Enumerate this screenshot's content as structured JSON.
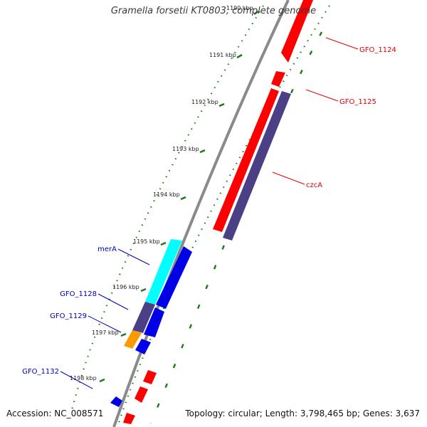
{
  "header": {
    "title": "Gramella forsetii KT0803, complete genome"
  },
  "footer": {
    "accession": "Accession: NC_008571",
    "summary": "Topology: circular; Length: 3,798,465 bp; Genes: 3,637"
  },
  "colors": {
    "backbone": "#8a8a8a",
    "forward_gene": "#ff0000",
    "reverse_gene": "#0000e6",
    "ribbon_purple": "#4b3f86",
    "ribbon_cyan": "#00ffff",
    "ribbon_orange": "#ff9900",
    "tick_dots": "#1a7a1a",
    "label_red": "#e00000",
    "label_blue": "#0000b0"
  },
  "ticks": [
    "1190 kbp",
    "1191 kbp",
    "1192 kbp",
    "1193 kbp",
    "1194 kbp",
    "1195 kbp",
    "1196 kbp",
    "1197 kbp",
    "1198 kbp"
  ],
  "gene_labels": [
    {
      "text": "GFO_1124",
      "strand": "forward"
    },
    {
      "text": "GFO_1125",
      "strand": "forward"
    },
    {
      "text": "czcA",
      "strand": "forward"
    },
    {
      "text": "merA",
      "strand": "reverse"
    },
    {
      "text": "GFO_1128",
      "strand": "reverse"
    },
    {
      "text": "GFO_1129",
      "strand": "reverse"
    },
    {
      "text": "GFO_1132",
      "strand": "reverse"
    }
  ]
}
